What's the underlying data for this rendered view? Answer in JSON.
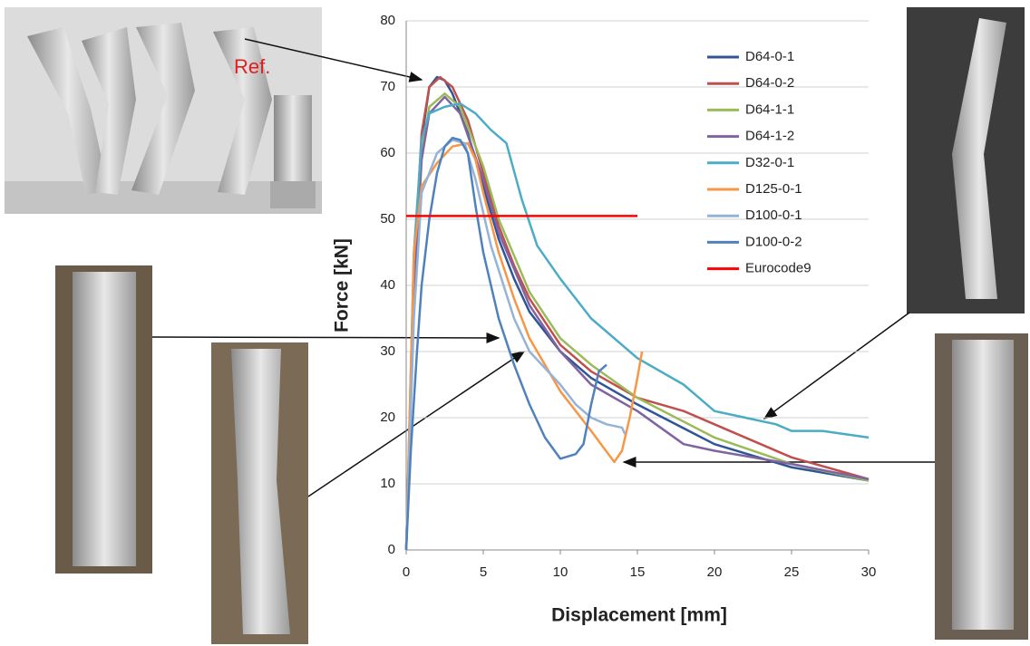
{
  "chart_data": {
    "type": "line",
    "xlabel": "Displacement [mm]",
    "ylabel": "Force [kN]",
    "annotation": "Ref.",
    "xlim": [
      0,
      30
    ],
    "xticks": [
      0,
      5,
      10,
      15,
      20,
      25,
      30
    ],
    "ylim": [
      0,
      80
    ],
    "yticks": [
      0,
      10,
      20,
      30,
      40,
      50,
      60,
      70,
      80
    ],
    "grid": true,
    "legend": "upper right",
    "series": [
      {
        "name": "D64-0-1",
        "color": "#2f5597",
        "x": [
          0,
          0.5,
          1,
          1.5,
          2,
          2.5,
          3,
          4,
          5,
          6,
          7,
          8,
          10,
          12,
          15,
          20,
          25,
          30
        ],
        "values": [
          0,
          40,
          62,
          70,
          71.5,
          71,
          69,
          63,
          55,
          47,
          41,
          36,
          30,
          26,
          22,
          16,
          12.5,
          10.5
        ]
      },
      {
        "name": "D64-0-2",
        "color": "#c0504d",
        "x": [
          0,
          0.5,
          1,
          1.5,
          2.2,
          3,
          4,
          5,
          6,
          7,
          8,
          10,
          12,
          15,
          18,
          20,
          25,
          30
        ],
        "values": [
          0,
          42,
          63,
          70,
          71.5,
          70,
          65,
          57,
          49,
          43,
          38,
          31,
          27,
          23,
          21,
          19,
          14,
          10.7
        ]
      },
      {
        "name": "D64-1-1",
        "color": "#9bbb59",
        "x": [
          0,
          0.5,
          1,
          1.5,
          2.5,
          3.5,
          5,
          6,
          8,
          10,
          12,
          15,
          20,
          25,
          30
        ],
        "values": [
          0,
          40,
          60,
          67,
          69,
          67,
          58,
          50,
          39,
          32,
          28,
          23,
          17,
          13,
          10.5
        ]
      },
      {
        "name": "D64-1-2",
        "color": "#8064a2",
        "x": [
          0,
          0.5,
          1,
          1.5,
          2.5,
          3.5,
          5,
          6,
          8,
          10,
          12,
          15,
          18,
          20,
          25,
          30
        ],
        "values": [
          0,
          38,
          59,
          66,
          68.5,
          66,
          56,
          48,
          37,
          30,
          25,
          21,
          16,
          15,
          13,
          10.7
        ]
      },
      {
        "name": "D32-0-1",
        "color": "#4bacc6",
        "x": [
          0,
          0.5,
          1,
          1.5,
          2.5,
          3.5,
          4.5,
          5.5,
          6.5,
          7.5,
          8.5,
          10,
          12,
          15,
          18,
          20,
          22,
          24,
          25,
          27,
          30
        ],
        "values": [
          0,
          45,
          62,
          66,
          67,
          67.5,
          66,
          63.5,
          61.5,
          53,
          46,
          41,
          35,
          29,
          25,
          21,
          20,
          19,
          18,
          18,
          17
        ]
      },
      {
        "name": "D125-0-1",
        "color": "#f79646",
        "x": [
          0,
          0.5,
          1,
          2,
          3,
          4,
          4.5,
          5,
          6,
          7,
          8,
          10,
          12,
          13.5,
          14,
          14.5,
          15,
          15.3
        ],
        "values": [
          0,
          45,
          55,
          58.5,
          61,
          61.5,
          59,
          54,
          45,
          38,
          32,
          24,
          18,
          13.3,
          15,
          20,
          26,
          30
        ]
      },
      {
        "name": "D100-0-1",
        "color": "#95b3d7",
        "x": [
          0,
          0.5,
          1,
          2,
          3,
          3.8,
          4.5,
          5.5,
          7,
          8,
          10,
          11,
          12,
          13,
          14,
          14.2
        ],
        "values": [
          0,
          35,
          54,
          60,
          62,
          61.5,
          56,
          46,
          35,
          30,
          25,
          22,
          20,
          19,
          18.5,
          17.5
        ]
      },
      {
        "name": "D100-0-2",
        "color": "#4f81bd",
        "x": [
          0,
          0.3,
          0.7,
          1,
          1.5,
          2,
          2.5,
          3,
          3.5,
          4,
          4.5,
          5,
          6,
          7,
          8,
          9,
          10,
          11,
          11.5,
          12,
          12.5,
          13
        ],
        "values": [
          0,
          15,
          30,
          40,
          50,
          57,
          61,
          62.3,
          62,
          60,
          52,
          45,
          35,
          28,
          22,
          17,
          13.8,
          14.5,
          16,
          22,
          27,
          28
        ]
      },
      {
        "name": "Eurocode9",
        "color": "#ff0000",
        "x": [
          0,
          15
        ],
        "values": [
          50.5,
          50.5
        ]
      }
    ]
  }
}
